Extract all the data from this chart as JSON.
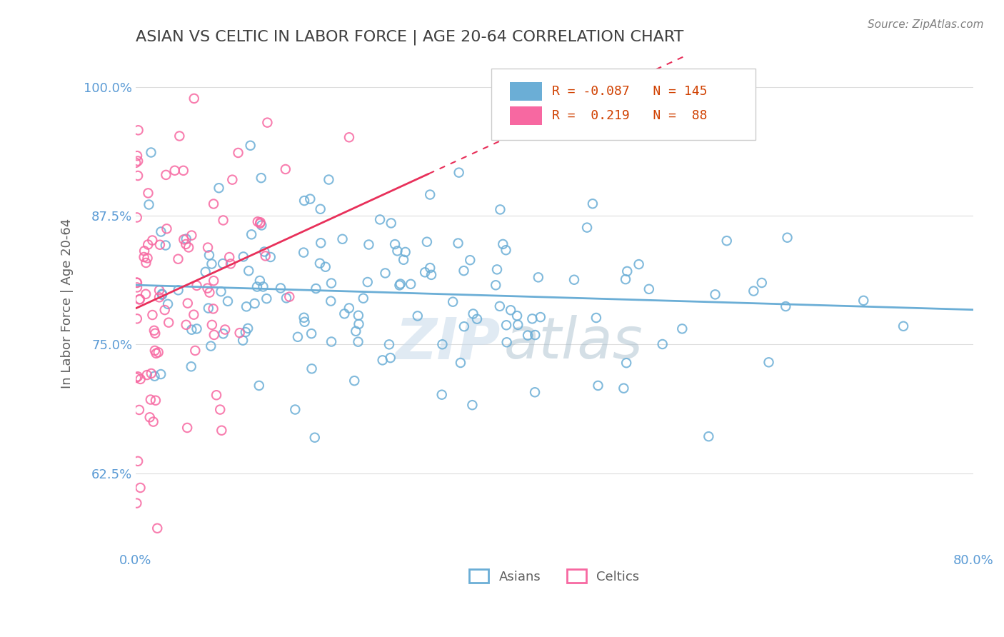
{
  "title": "ASIAN VS CELTIC IN LABOR FORCE | AGE 20-64 CORRELATION CHART",
  "source_text": "Source: ZipAtlas.com",
  "xlabel": "",
  "ylabel": "In Labor Force | Age 20-64",
  "xlim": [
    0.0,
    0.8
  ],
  "ylim": [
    0.55,
    1.03
  ],
  "xticks": [
    0.0,
    0.1,
    0.2,
    0.3,
    0.4,
    0.5,
    0.6,
    0.7,
    0.8
  ],
  "xticklabels": [
    "0.0%",
    "",
    "",
    "",
    "",
    "",
    "",
    "",
    "80.0%"
  ],
  "ytick_values": [
    0.625,
    0.75,
    0.875,
    1.0
  ],
  "yticklabels": [
    "62.5%",
    "75.0%",
    "87.5%",
    "100.0%"
  ],
  "asian_color": "#6baed6",
  "celtic_color": "#f768a1",
  "asian_R": -0.087,
  "asian_N": 145,
  "celtic_R": 0.219,
  "celtic_N": 88,
  "legend_asian_label": "Asians",
  "legend_celtic_label": "Celtics",
  "watermark_line1": "ZIP",
  "watermark_line2": "atlas",
  "background_color": "#ffffff",
  "grid_color": "#dddddd",
  "title_color": "#404040",
  "axis_label_color": "#606060",
  "tick_label_color": "#5b9bd5"
}
